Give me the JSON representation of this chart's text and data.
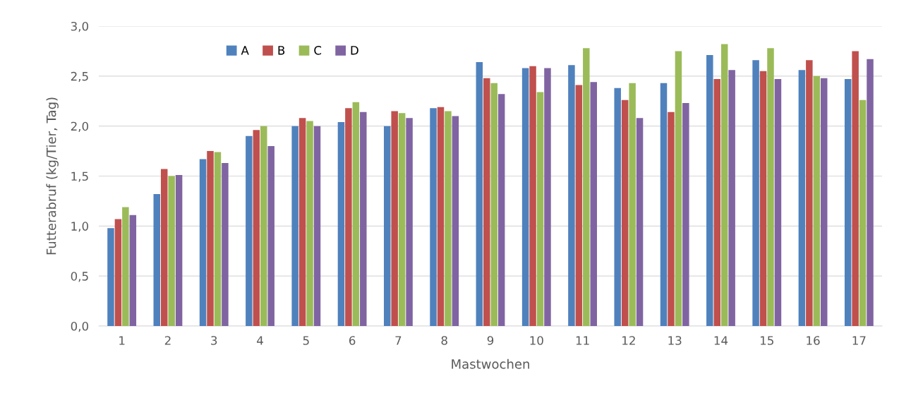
{
  "chart_data": {
    "type": "bar",
    "xlabel": "Mastwochen",
    "ylabel": "Futterabruf (kg/Tier, Tag)",
    "categories": [
      "1",
      "2",
      "3",
      "4",
      "5",
      "6",
      "7",
      "8",
      "9",
      "10",
      "11",
      "12",
      "13",
      "14",
      "15",
      "16",
      "17"
    ],
    "series": [
      {
        "name": "A",
        "color": "#4f81bd",
        "values": [
          0.98,
          1.32,
          1.67,
          1.9,
          2.0,
          2.04,
          2.0,
          2.18,
          2.64,
          2.58,
          2.61,
          2.38,
          2.43,
          2.71,
          2.66,
          2.56,
          2.47
        ]
      },
      {
        "name": "B",
        "color": "#c0504d",
        "values": [
          1.07,
          1.57,
          1.75,
          1.96,
          2.08,
          2.18,
          2.15,
          2.19,
          2.48,
          2.6,
          2.41,
          2.26,
          2.14,
          2.47,
          2.55,
          2.66,
          2.75
        ]
      },
      {
        "name": "C",
        "color": "#9bbb59",
        "values": [
          1.19,
          1.5,
          1.74,
          2.0,
          2.05,
          2.24,
          2.13,
          2.15,
          2.43,
          2.34,
          2.78,
          2.43,
          2.75,
          2.82,
          2.78,
          2.5,
          2.26
        ]
      },
      {
        "name": "D",
        "color": "#8064a2",
        "values": [
          1.11,
          1.51,
          1.63,
          1.8,
          2.0,
          2.14,
          2.08,
          2.1,
          2.32,
          2.58,
          2.44,
          2.08,
          2.23,
          2.56,
          2.47,
          2.48,
          2.67
        ]
      }
    ],
    "ylim": [
      0,
      3
    ],
    "yticks": [
      {
        "value": 0,
        "label": "0,0"
      },
      {
        "value": 0.5,
        "label": "0,5"
      },
      {
        "value": 1,
        "label": "1,0"
      },
      {
        "value": 1.5,
        "label": "1,5"
      },
      {
        "value": 2,
        "label": "2,0"
      },
      {
        "value": 2.5,
        "label": "2,5"
      },
      {
        "value": 3,
        "label": "3,0"
      }
    ],
    "grid": "y",
    "legend": "top left"
  }
}
